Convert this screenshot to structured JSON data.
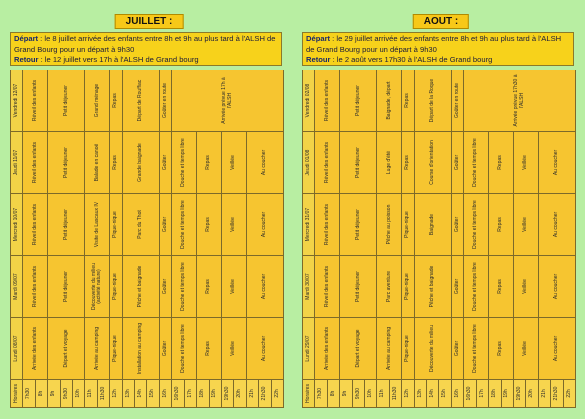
{
  "panels": [
    {
      "title": "JUILLET :",
      "info": {
        "depart_label": "Départ",
        "depart_text": " : le 8 juillet arrivée des enfants entre 8h et 9h au plus tard à l'ALSH de Grand Bourg pour un départ à 9h30",
        "retour_label": "Retour",
        "retour_text": " : le 12 juillet vers 17h à l'ALSH de Grand bourg"
      },
      "table": {
        "header": [
          "Horaires",
          "Lundi 08/07",
          "Mardi 09/07",
          "Mercredi 10/07",
          "Jeudi 11/07",
          "Vendredi 12/07"
        ],
        "times": [
          "7h30",
          "8h",
          "9h",
          "9h30",
          "10h",
          "11h",
          "11h30",
          "12h",
          "13h",
          "14h",
          "15h",
          "16h",
          "16h30",
          "17h",
          "18h",
          "19h",
          "19h30",
          "20h",
          "21h",
          "21h30",
          "22h"
        ],
        "days": [
          [
            "Arrivée des enfants",
            null,
            "Départ et voyage",
            null,
            null,
            "Arrivée au camping",
            null,
            "Pique-nique",
            "Installation au camping",
            null,
            null,
            "Goûter",
            "Douche et temps libre",
            null,
            "Repas",
            null,
            "Veillée",
            null,
            "Au coucher",
            null,
            null
          ],
          [
            "Réveil des enfants",
            null,
            "Petit déjeuner",
            null,
            null,
            "Découverte du milieu (activité nature)",
            null,
            "Pique-nique",
            "Pêche et baignade",
            null,
            null,
            "Goûter",
            "Douche et temps libre",
            null,
            "Repas",
            null,
            "Veillée",
            null,
            "Au coucher",
            null,
            null
          ],
          [
            "Réveil des enfants",
            null,
            "Petit déjeuner",
            null,
            null,
            "Visite de Lascaux IV",
            null,
            "Pique-nique",
            "Parc du Thot",
            null,
            null,
            "Goûter",
            "Douche et temps libre",
            null,
            "Repas",
            null,
            "Veillée",
            null,
            "Au coucher",
            null,
            null
          ],
          [
            "Réveil des enfants",
            null,
            "Petit déjeuner",
            null,
            null,
            "Balade en canoë",
            null,
            "Repas",
            "Grande baignade",
            null,
            null,
            "Goûter",
            "Douche et temps libre",
            null,
            "Repas",
            null,
            "Veillée",
            null,
            "Au coucher",
            null,
            null
          ],
          [
            "Réveil des enfants",
            null,
            "Petit déjeuner",
            null,
            null,
            "Grand ménage",
            null,
            "Repas",
            "Départ de Rouffiac",
            null,
            null,
            "Goûter en route",
            "Arrivée prévue 17h à l'ALSH",
            null,
            null,
            null,
            null,
            null,
            null,
            null,
            null
          ]
        ]
      }
    },
    {
      "title": "AOUT :",
      "info": {
        "depart_label": "Départ",
        "depart_text": " : le 29 juillet arrivée des enfants entre 8h et 9h au plus tard à l'ALSH de Grand Bourg pour un départ à 9h30",
        "retour_label": "Retour",
        "retour_text": " : le 2 août vers 17h30 à l'ALSH de Grand bourg"
      },
      "table": {
        "header": [
          "Horaires",
          "Lundi 29/07",
          "Mardi 30/07",
          "Mercredi 31/07",
          "Jeudi 01/08",
          "Vendredi 02/08"
        ],
        "times": [
          "7h30",
          "8h",
          "9h",
          "9h30",
          "10h",
          "11h",
          "11h30",
          "12h",
          "13h",
          "14h",
          "15h",
          "16h",
          "16h30",
          "17h",
          "18h",
          "19h",
          "19h30",
          "20h",
          "21h",
          "21h30",
          "22h"
        ],
        "days": [
          [
            "Arrivée des enfants",
            null,
            "Départ et voyage",
            null,
            null,
            "Arrivée au camping",
            null,
            "Pique-nique",
            "Découverte du milieu",
            null,
            null,
            "Goûter",
            "Douche et temps libre",
            null,
            "Repas",
            null,
            "Veillée",
            null,
            "Au coucher",
            null,
            null
          ],
          [
            "Réveil des enfants",
            null,
            "Petit déjeuner",
            null,
            null,
            "Parc aventure",
            null,
            "Pique-nique",
            "Pêche et baignade",
            null,
            null,
            "Goûter",
            "Douche et temps libre",
            null,
            "Repas",
            null,
            "Veillée",
            null,
            "Au coucher",
            null,
            null
          ],
          [
            "Réveil des enfants",
            null,
            "Petit déjeuner",
            null,
            null,
            "Pêche au poisson",
            null,
            "Pique-nique",
            "Baignade",
            null,
            null,
            "Goûter",
            "Douche et temps libre",
            null,
            "Repas",
            null,
            "Veillée",
            null,
            "Au coucher",
            null,
            null
          ],
          [
            "Réveil des enfants",
            null,
            "Petit déjeuner",
            null,
            null,
            "Luge d'été",
            null,
            "Repas",
            "Course d'orientation",
            null,
            null,
            "Goûter",
            "Douche et temps libre",
            null,
            "Repas",
            null,
            "Veillée",
            null,
            "Au coucher",
            null,
            null
          ],
          [
            "Réveil des enfants",
            null,
            "Petit déjeuner",
            null,
            null,
            "Baignade, départ",
            null,
            "Repas",
            "Départ de la Roque",
            null,
            null,
            "Goûter en route",
            "Arrivée prévue 17h30 à l'ALSH",
            null,
            null,
            null,
            null,
            null,
            null,
            null,
            null
          ]
        ]
      }
    }
  ]
}
